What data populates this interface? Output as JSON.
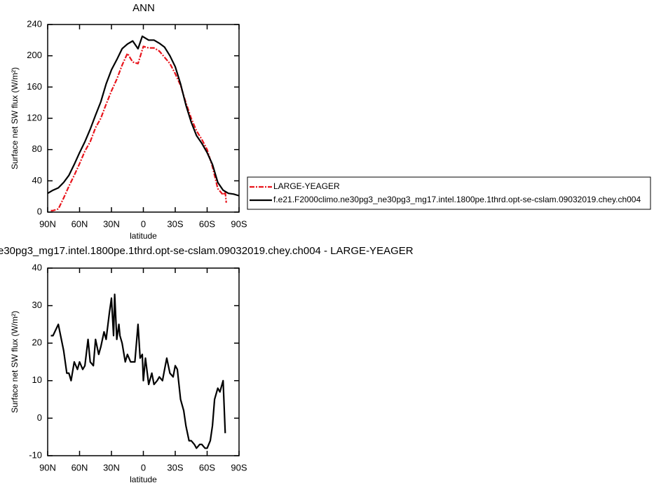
{
  "chart_data": [
    {
      "type": "line",
      "title": "ANN",
      "xlabel": "latitude",
      "ylabel": "Surface net SW flux (W/m²)",
      "xlim": [
        90,
        -90
      ],
      "xticks": [
        {
          "value": 90,
          "label": "90N"
        },
        {
          "value": 60,
          "label": "60N"
        },
        {
          "value": 30,
          "label": "30N"
        },
        0,
        {
          "value": -30,
          "label": "30S"
        },
        {
          "value": -60,
          "label": "60S"
        },
        {
          "value": -90,
          "label": "90S"
        }
      ],
      "ylim": [
        0,
        240
      ],
      "yticks": [
        0,
        40,
        80,
        120,
        160,
        200,
        240
      ],
      "legend": "right",
      "series": [
        {
          "name": "LARGE-YEAGER",
          "color": "#e8141b",
          "dash": true,
          "x": [
            87,
            85,
            80,
            75,
            70,
            65,
            60,
            55,
            50,
            45,
            40,
            35,
            30,
            25,
            20,
            15,
            10,
            5,
            0,
            -5,
            -10,
            -15,
            -20,
            -25,
            -30,
            -35,
            -40,
            -45,
            -50,
            -55,
            -60,
            -65,
            -70,
            -75,
            -77,
            -78
          ],
          "values": [
            2,
            2,
            4,
            18,
            33,
            47,
            62,
            78,
            90,
            108,
            120,
            138,
            155,
            170,
            188,
            203,
            192,
            190,
            212,
            210,
            210,
            206,
            198,
            190,
            177,
            162,
            140,
            120,
            104,
            93,
            80,
            58,
            30,
            22,
            26,
            12
          ]
        },
        {
          "name": "f.e21.F2000climo.ne30pg3_ne30pg3_mg17.intel.1800pe.1thrd.opt-se-cslam.09032019.chey.ch004",
          "color": "#000000",
          "dash": false,
          "x": [
            90,
            85,
            80,
            75,
            70,
            65,
            60,
            55,
            50,
            45,
            40,
            35,
            30,
            25,
            20,
            15,
            10,
            5,
            1,
            -5,
            -10,
            -15,
            -20,
            -25,
            -30,
            -35,
            -40,
            -45,
            -50,
            -55,
            -60,
            -65,
            -70,
            -75,
            -80,
            -85,
            -90
          ],
          "values": [
            24,
            28,
            31,
            38,
            47,
            61,
            76,
            90,
            106,
            124,
            141,
            164,
            182,
            195,
            209,
            215,
            219,
            209,
            225,
            220,
            220,
            216,
            211,
            200,
            186,
            164,
            137,
            115,
            98,
            88,
            76,
            61,
            38,
            28,
            24,
            23,
            21
          ]
        }
      ]
    },
    {
      "type": "line",
      "title": "e30pg3_mg17.intel.1800pe.1thrd.opt-se-cslam.09032019.chey.ch004 - LARGE-YEAGER",
      "xlabel": "latitude",
      "ylabel": "Surface net SW flux (W/m²)",
      "xlim": [
        90,
        -90
      ],
      "xticks": [
        {
          "value": 90,
          "label": "90N"
        },
        {
          "value": 60,
          "label": "60N"
        },
        {
          "value": 30,
          "label": "30N"
        },
        0,
        {
          "value": -30,
          "label": "30S"
        },
        {
          "value": -60,
          "label": "60S"
        },
        {
          "value": -90,
          "label": "90S"
        }
      ],
      "ylim": [
        -10,
        40
      ],
      "yticks": [
        -10,
        0,
        10,
        20,
        30,
        40
      ],
      "series": [
        {
          "color": "#000000",
          "x": [
            87,
            85,
            80,
            75,
            72,
            70,
            68,
            65,
            62,
            60,
            57,
            55,
            52,
            50,
            47,
            45,
            42,
            40,
            37,
            35,
            32,
            30,
            28,
            27,
            25,
            23,
            22,
            20,
            17,
            15,
            12,
            10,
            8,
            5,
            3,
            1,
            0,
            -2,
            -5,
            -8,
            -10,
            -13,
            -15,
            -18,
            -20,
            -22,
            -25,
            -28,
            -30,
            -32,
            -35,
            -38,
            -40,
            -43,
            -45,
            -48,
            -50,
            -53,
            -55,
            -58,
            -60,
            -63,
            -65,
            -67,
            -70,
            -72,
            -75,
            -77
          ],
          "values": [
            22,
            22,
            25,
            18,
            12,
            12,
            10,
            15,
            13,
            15,
            13,
            14,
            21,
            15,
            14,
            21,
            17,
            19,
            23,
            21,
            28,
            32,
            22,
            33,
            21,
            25,
            22,
            20,
            15,
            17,
            15,
            15,
            15,
            25,
            16,
            17,
            10,
            16,
            9,
            12,
            9,
            10,
            11,
            10,
            13,
            16,
            12,
            11,
            14,
            13,
            5,
            2,
            -2,
            -6,
            -6,
            -7,
            -8,
            -7,
            -7,
            -8,
            -8,
            -6,
            -2,
            5,
            8,
            7,
            10,
            -4
          ]
        }
      ]
    }
  ]
}
